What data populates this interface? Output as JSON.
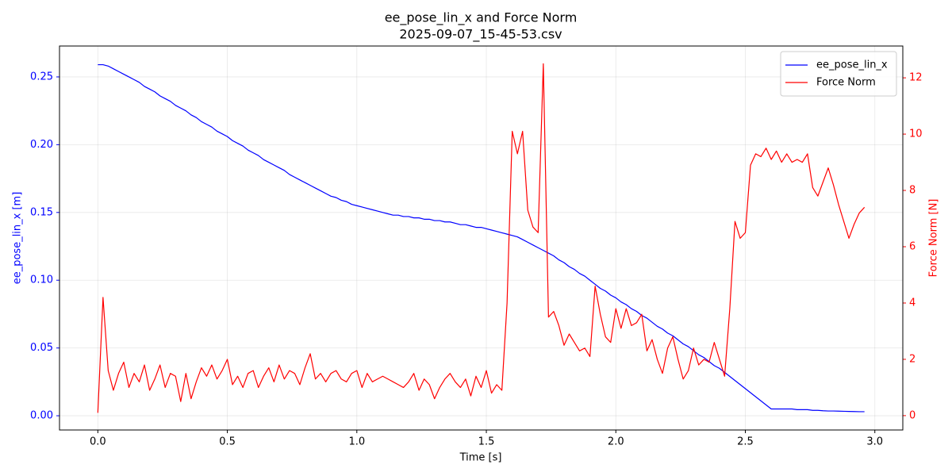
{
  "chart_data": {
    "type": "line",
    "title": "ee_pose_lin_x and Force Norm",
    "subtitle": "2025-09-07_15-45-53.csv",
    "x_label": "Time [s]",
    "y_label": "ee_pose_lin_x [m]",
    "y2_label": "Force Norm [N]",
    "grid": true,
    "legend": "upper right",
    "x": [
      0,
      0.02,
      0.04,
      0.06,
      0.08,
      0.1,
      0.12,
      0.14,
      0.16,
      0.18,
      0.2,
      0.22,
      0.24,
      0.26,
      0.28,
      0.3,
      0.32,
      0.34,
      0.36,
      0.38,
      0.4,
      0.42,
      0.44,
      0.46,
      0.48,
      0.5,
      0.52,
      0.54,
      0.56,
      0.58,
      0.6,
      0.62,
      0.64,
      0.66,
      0.68,
      0.7,
      0.72,
      0.74,
      0.76,
      0.78,
      0.8,
      0.82,
      0.84,
      0.86,
      0.88,
      0.9,
      0.92,
      0.94,
      0.96,
      0.98,
      1.0,
      1.02,
      1.04,
      1.06,
      1.08,
      1.1,
      1.12,
      1.14,
      1.16,
      1.18,
      1.2,
      1.22,
      1.24,
      1.26,
      1.28,
      1.3,
      1.32,
      1.34,
      1.36,
      1.38,
      1.4,
      1.42,
      1.44,
      1.46,
      1.48,
      1.5,
      1.52,
      1.54,
      1.56,
      1.58,
      1.6,
      1.62,
      1.64,
      1.66,
      1.68,
      1.7,
      1.72,
      1.74,
      1.76,
      1.78,
      1.8,
      1.82,
      1.84,
      1.86,
      1.88,
      1.9,
      1.92,
      1.94,
      1.96,
      1.98,
      2.0,
      2.02,
      2.04,
      2.06,
      2.08,
      2.1,
      2.12,
      2.14,
      2.16,
      2.18,
      2.2,
      2.22,
      2.24,
      2.26,
      2.28,
      2.3,
      2.32,
      2.34,
      2.36,
      2.38,
      2.4,
      2.42,
      2.44,
      2.46,
      2.48,
      2.5,
      2.52,
      2.54,
      2.56,
      2.58,
      2.6,
      2.62,
      2.64,
      2.66,
      2.68,
      2.7,
      2.72,
      2.74,
      2.76,
      2.78,
      2.8,
      2.82,
      2.84,
      2.86,
      2.88,
      2.9,
      2.92,
      2.94,
      2.96
    ],
    "series": [
      {
        "name": "ee_pose_lin_x",
        "color": "#0000ff",
        "values": [
          0.259,
          0.259,
          0.258,
          0.256,
          0.254,
          0.252,
          0.25,
          0.248,
          0.246,
          0.243,
          0.241,
          0.239,
          0.236,
          0.234,
          0.232,
          0.229,
          0.227,
          0.225,
          0.222,
          0.22,
          0.217,
          0.215,
          0.213,
          0.21,
          0.208,
          0.206,
          0.203,
          0.201,
          0.199,
          0.196,
          0.194,
          0.192,
          0.189,
          0.187,
          0.185,
          0.183,
          0.181,
          0.178,
          0.176,
          0.174,
          0.172,
          0.17,
          0.168,
          0.166,
          0.164,
          0.162,
          0.161,
          0.159,
          0.158,
          0.156,
          0.155,
          0.154,
          0.153,
          0.152,
          0.151,
          0.15,
          0.149,
          0.148,
          0.148,
          0.147,
          0.147,
          0.146,
          0.146,
          0.145,
          0.145,
          0.144,
          0.144,
          0.143,
          0.143,
          0.142,
          0.141,
          0.141,
          0.14,
          0.139,
          0.139,
          0.138,
          0.137,
          0.136,
          0.135,
          0.134,
          0.133,
          0.132,
          0.13,
          0.128,
          0.126,
          0.124,
          0.122,
          0.12,
          0.118,
          0.115,
          0.113,
          0.11,
          0.108,
          0.105,
          0.103,
          0.1,
          0.097,
          0.094,
          0.092,
          0.089,
          0.087,
          0.084,
          0.082,
          0.079,
          0.077,
          0.074,
          0.072,
          0.069,
          0.066,
          0.064,
          0.061,
          0.059,
          0.056,
          0.053,
          0.051,
          0.048,
          0.045,
          0.043,
          0.04,
          0.037,
          0.035,
          0.032,
          0.029,
          0.026,
          0.023,
          0.02,
          0.017,
          0.014,
          0.011,
          0.008,
          0.005,
          0.005,
          0.005,
          0.005,
          0.005,
          0.0045,
          0.0045,
          0.0045,
          0.004,
          0.004,
          0.0037,
          0.0035,
          0.0035,
          0.0034,
          0.0033,
          0.0032,
          0.0031,
          0.003,
          0.003
        ]
      },
      {
        "name": "Force Norm",
        "color": "#ff0000",
        "axis": "y2",
        "values": [
          0.1,
          4.2,
          1.6,
          0.9,
          1.5,
          1.9,
          1.0,
          1.5,
          1.2,
          1.8,
          0.9,
          1.3,
          1.8,
          1.0,
          1.5,
          1.4,
          0.5,
          1.5,
          0.6,
          1.2,
          1.7,
          1.4,
          1.8,
          1.3,
          1.6,
          2.0,
          1.1,
          1.4,
          1.0,
          1.5,
          1.6,
          1.0,
          1.4,
          1.7,
          1.2,
          1.8,
          1.3,
          1.6,
          1.5,
          1.1,
          1.7,
          2.2,
          1.3,
          1.5,
          1.2,
          1.5,
          1.6,
          1.3,
          1.2,
          1.5,
          1.6,
          1.0,
          1.5,
          1.2,
          1.3,
          1.4,
          1.3,
          1.2,
          1.1,
          1.0,
          1.2,
          1.5,
          0.9,
          1.3,
          1.1,
          0.6,
          1.0,
          1.3,
          1.5,
          1.2,
          1.0,
          1.3,
          0.7,
          1.4,
          1.0,
          1.6,
          0.8,
          1.1,
          0.9,
          4.0,
          10.1,
          9.3,
          10.1,
          7.3,
          6.7,
          6.5,
          12.5,
          3.5,
          3.7,
          3.2,
          2.5,
          2.9,
          2.6,
          2.3,
          2.4,
          2.1,
          4.6,
          3.6,
          2.8,
          2.6,
          3.8,
          3.1,
          3.8,
          3.2,
          3.3,
          3.6,
          2.3,
          2.7,
          2.0,
          1.5,
          2.4,
          2.8,
          2.0,
          1.3,
          1.6,
          2.4,
          1.8,
          2.0,
          1.9,
          2.6,
          2.0,
          1.4,
          3.8,
          6.9,
          6.3,
          6.5,
          8.9,
          9.3,
          9.2,
          9.5,
          9.1,
          9.4,
          9.0,
          9.3,
          9.0,
          9.1,
          9.0,
          9.3,
          8.1,
          7.8,
          8.3,
          8.8,
          8.2,
          7.5,
          6.9,
          6.3,
          6.8,
          7.2,
          7.4
        ]
      }
    ],
    "xlim": [
      -0.148,
      3.108
    ],
    "xticks": [
      {
        "value": 0,
        "label": "0.0"
      },
      0.5,
      {
        "value": 1,
        "label": "1.0"
      },
      1.5,
      {
        "value": 2,
        "label": "2.0"
      },
      2.5,
      {
        "value": 3,
        "label": "3.0"
      }
    ],
    "ylim": [
      -0.0105,
      0.2728
    ],
    "yticks": [
      {
        "value": 0,
        "label": "0.00"
      },
      0.05,
      {
        "value": 0.1,
        "label": "0.10"
      },
      0.15,
      {
        "value": 0.2,
        "label": "0.20"
      },
      0.25
    ],
    "y2lim": [
      -0.51,
      13.13
    ],
    "y2ticks": [
      0,
      2,
      4,
      6,
      8,
      10,
      12
    ]
  }
}
